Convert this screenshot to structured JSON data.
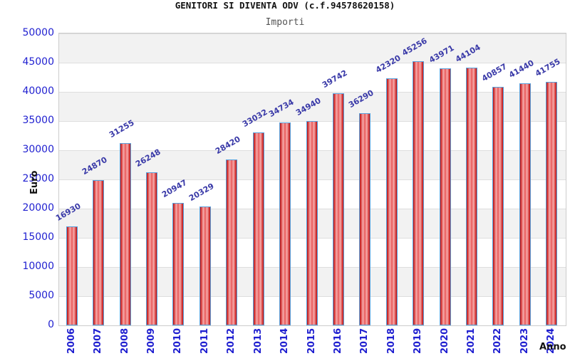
{
  "title": "GENITORI SI DIVENTA ODV (c.f.94578620158)",
  "subtitle": "Importi",
  "chart_data": {
    "type": "bar",
    "title": "GENITORI SI DIVENTA ODV (c.f.94578620158)",
    "subtitle": "Importi",
    "xlabel": "Anno",
    "ylabel": "Euro",
    "categories": [
      "2006",
      "2007",
      "2008",
      "2009",
      "2010",
      "2011",
      "2012",
      "2013",
      "2014",
      "2015",
      "2016",
      "2017",
      "2018",
      "2019",
      "2020",
      "2021",
      "2022",
      "2023",
      "2024"
    ],
    "values": [
      16930,
      24870,
      31255,
      26248,
      20947,
      20329,
      28420,
      33032,
      34734,
      34940,
      39742,
      36290,
      42320,
      45256,
      43971,
      44104,
      40857,
      41440,
      41755
    ],
    "ylim": [
      0,
      50000
    ],
    "ytick_step": 5000,
    "ytick_labels": [
      "0",
      "5000",
      "10000",
      "15000",
      "20000",
      "25000",
      "30000",
      "35000",
      "40000",
      "45000",
      "50000"
    ],
    "grid": "horizontal",
    "legend": "none",
    "colors": {
      "bar_fill_edge": "#b91111",
      "bar_fill_light": "#f7adad",
      "bar_border": "#58a0dc",
      "value_label": "#3a3aa8",
      "tick_label": "#1f1fd0",
      "band_gray": "#f2f2f2",
      "band_white": "#ffffff",
      "gridline": "#dedede",
      "plot_border": "#cccccc",
      "title_color": "#111111",
      "subtitle_color": "#555555"
    }
  }
}
